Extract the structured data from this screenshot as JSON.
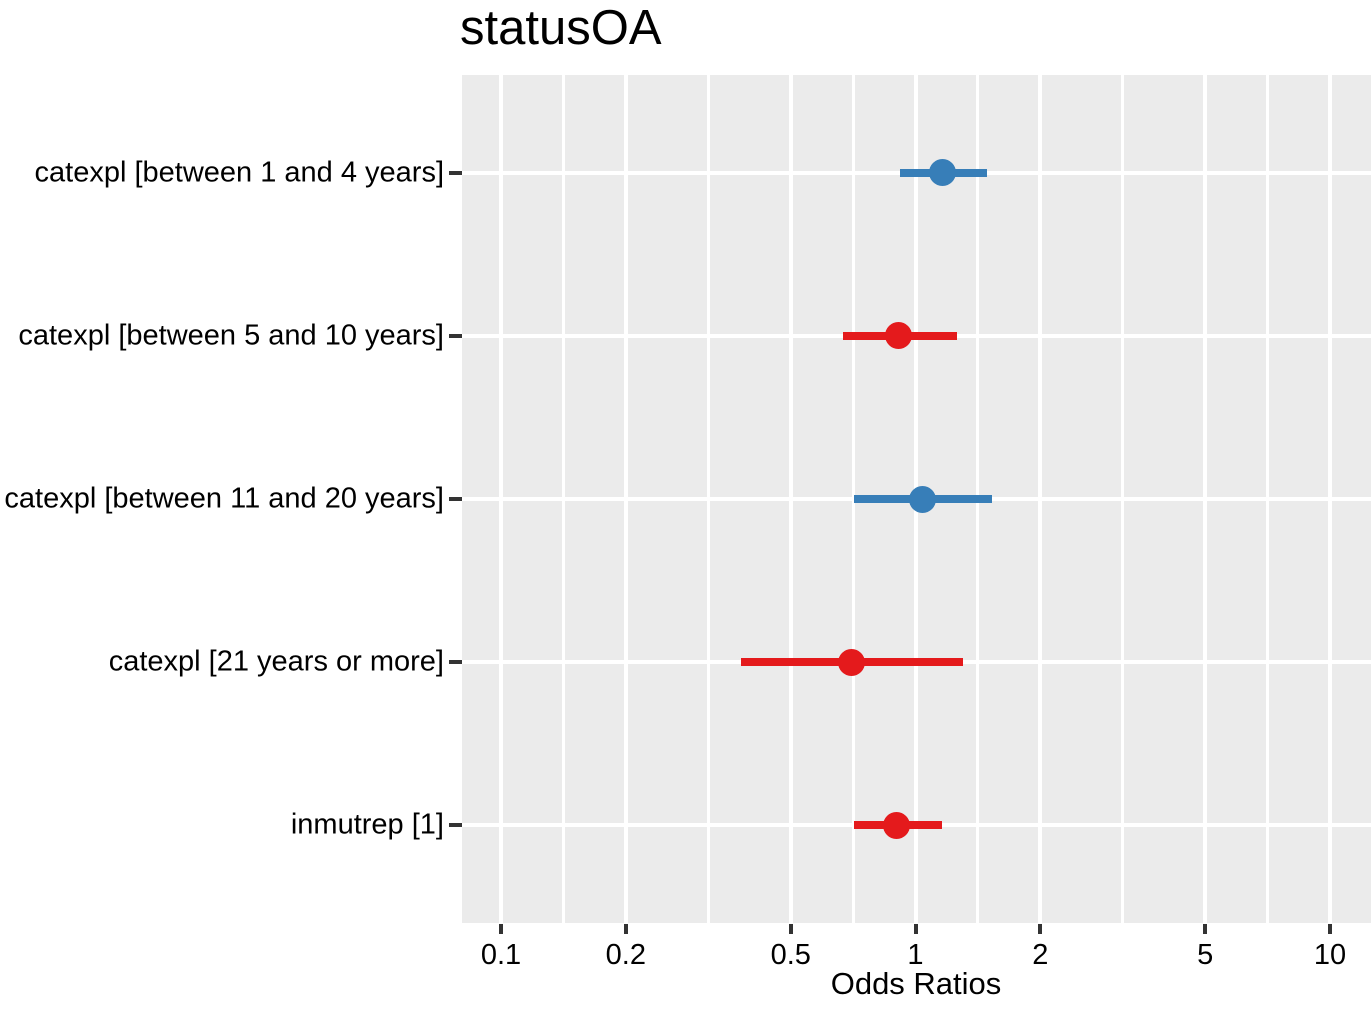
{
  "chart_data": {
    "type": "forest",
    "title": "statusOA",
    "xlabel": "Odds Ratios",
    "x_scale": "log10",
    "xlim": [
      0.0805,
      12.56
    ],
    "x_ticks": [
      {
        "value": 0.1,
        "label": "0.1"
      },
      {
        "value": 0.2,
        "label": "0.2"
      },
      {
        "value": 0.5,
        "label": "0.5"
      },
      {
        "value": 1,
        "label": "1"
      },
      {
        "value": 2,
        "label": "2"
      },
      {
        "value": 5,
        "label": "5"
      },
      {
        "value": 10,
        "label": "10"
      }
    ],
    "x_minor_breaks": [
      0.1414,
      0.3162,
      0.7071,
      1.4142,
      3.1623,
      7.0711
    ],
    "grid": "on",
    "rows": [
      {
        "label": "catexpl [between 1 and 4 years]",
        "or": 1.16,
        "ci_low": 0.92,
        "ci_high": 1.49,
        "color": "#377EB8"
      },
      {
        "label": "catexpl [between 5 and 10 years]",
        "or": 0.91,
        "ci_low": 0.67,
        "ci_high": 1.26,
        "color": "#E41A1C"
      },
      {
        "label": "catexpl [between 11 and 20 years]",
        "or": 1.04,
        "ci_low": 0.71,
        "ci_high": 1.53,
        "color": "#377EB8"
      },
      {
        "label": "catexpl [21 years or more]",
        "or": 0.7,
        "ci_low": 0.38,
        "ci_high": 1.3,
        "color": "#E41A1C"
      },
      {
        "label": "inmutrep [1]",
        "or": 0.9,
        "ci_low": 0.71,
        "ci_high": 1.16,
        "color": "#E41A1C"
      }
    ],
    "colors": {
      "positive_effect": "#377EB8",
      "negative_effect": "#E41A1C",
      "panel_background": "#EBEBEB",
      "gridline": "#FFFFFF",
      "tick_mark": "#333333",
      "text": "#000000"
    },
    "legend": "none"
  }
}
